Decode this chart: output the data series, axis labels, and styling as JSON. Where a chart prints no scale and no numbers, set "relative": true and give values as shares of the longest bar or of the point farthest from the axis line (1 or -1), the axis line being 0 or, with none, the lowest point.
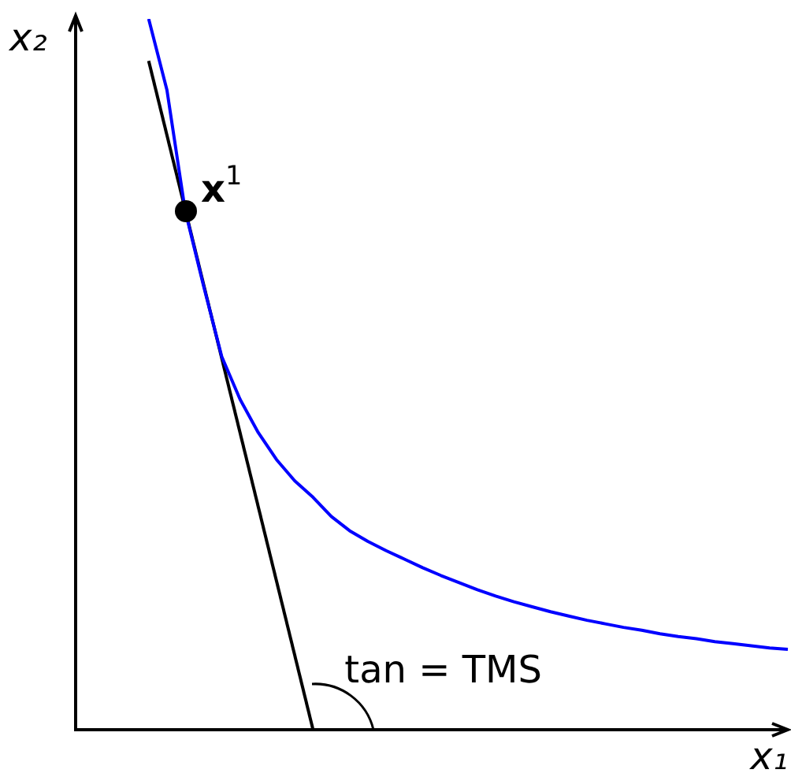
{
  "chart_data": {
    "type": "line",
    "relative": true,
    "xlabel": "x₁",
    "ylabel": "x₂",
    "marker": "none",
    "categories": [
      null,
      null,
      null,
      null,
      null,
      null,
      null,
      null,
      null,
      null,
      null,
      null,
      null,
      null,
      null,
      null,
      null,
      null,
      null,
      null,
      null,
      null,
      null,
      null,
      null,
      null,
      null,
      null,
      null,
      null,
      null,
      null,
      null,
      null,
      null,
      null,
      null,
      null,
      null,
      null
    ],
    "series": [
      {
        "color": "#0000ff",
        "values": [
          null,
          null,
          null,
          null,
          1.0,
          0.9,
          0.73,
          0.625,
          0.525,
          0.465,
          0.418,
          0.38,
          0.35,
          0.327,
          0.3,
          0.28,
          0.265,
          0.252,
          0.24,
          0.228,
          0.217,
          0.207,
          0.197,
          0.188,
          0.18,
          0.173,
          0.166,
          0.16,
          0.154,
          0.149,
          0.144,
          0.14,
          0.135,
          0.131,
          0.128,
          0.124,
          0.121,
          0.118,
          0.115,
          0.113
        ]
      },
      {
        "color": "#000000",
        "values": [
          null,
          null,
          null,
          null,
          0.941,
          null,
          null,
          null,
          null,
          null,
          null,
          null,
          null,
          0,
          null,
          null,
          null,
          null,
          null,
          null,
          null,
          null,
          null,
          null,
          null,
          null,
          null,
          null,
          null,
          null,
          null,
          null,
          null,
          null,
          null,
          null,
          null,
          null,
          null,
          null
        ]
      }
    ],
    "annotations": [
      "x$^{1}$",
      "tan = TMS"
    ]
  }
}
